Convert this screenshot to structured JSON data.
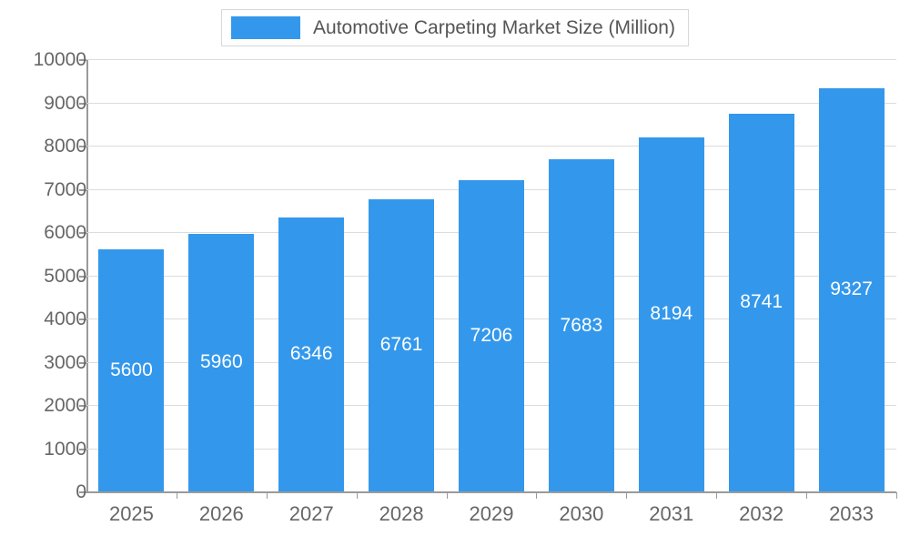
{
  "legend": {
    "label": "Automotive Carpeting Market Size (Million)",
    "swatch_color": "#3398EC"
  },
  "chart_data": {
    "type": "bar",
    "title": "Automotive Carpeting Market Size (Million)",
    "categories": [
      "2025",
      "2026",
      "2027",
      "2028",
      "2029",
      "2030",
      "2031",
      "2032",
      "2033"
    ],
    "values": [
      5600,
      5960,
      6346,
      6761,
      7206,
      7683,
      8194,
      8741,
      9327
    ],
    "xlabel": "",
    "ylabel": "",
    "ylim": [
      0,
      10000
    ],
    "ytick_interval": 1000,
    "ytick_labels": [
      "0",
      "1000",
      "2000",
      "3000",
      "4000",
      "5000",
      "6000",
      "7000",
      "8000",
      "9000",
      "10000"
    ],
    "grid": true,
    "legend_position": "top",
    "bar_color": "#3398EC",
    "value_label_color": "#ffffff",
    "axis_text_color": "#666666",
    "gridline_color": "#dcdcdc",
    "axis_line_color": "#9a9a9a"
  }
}
